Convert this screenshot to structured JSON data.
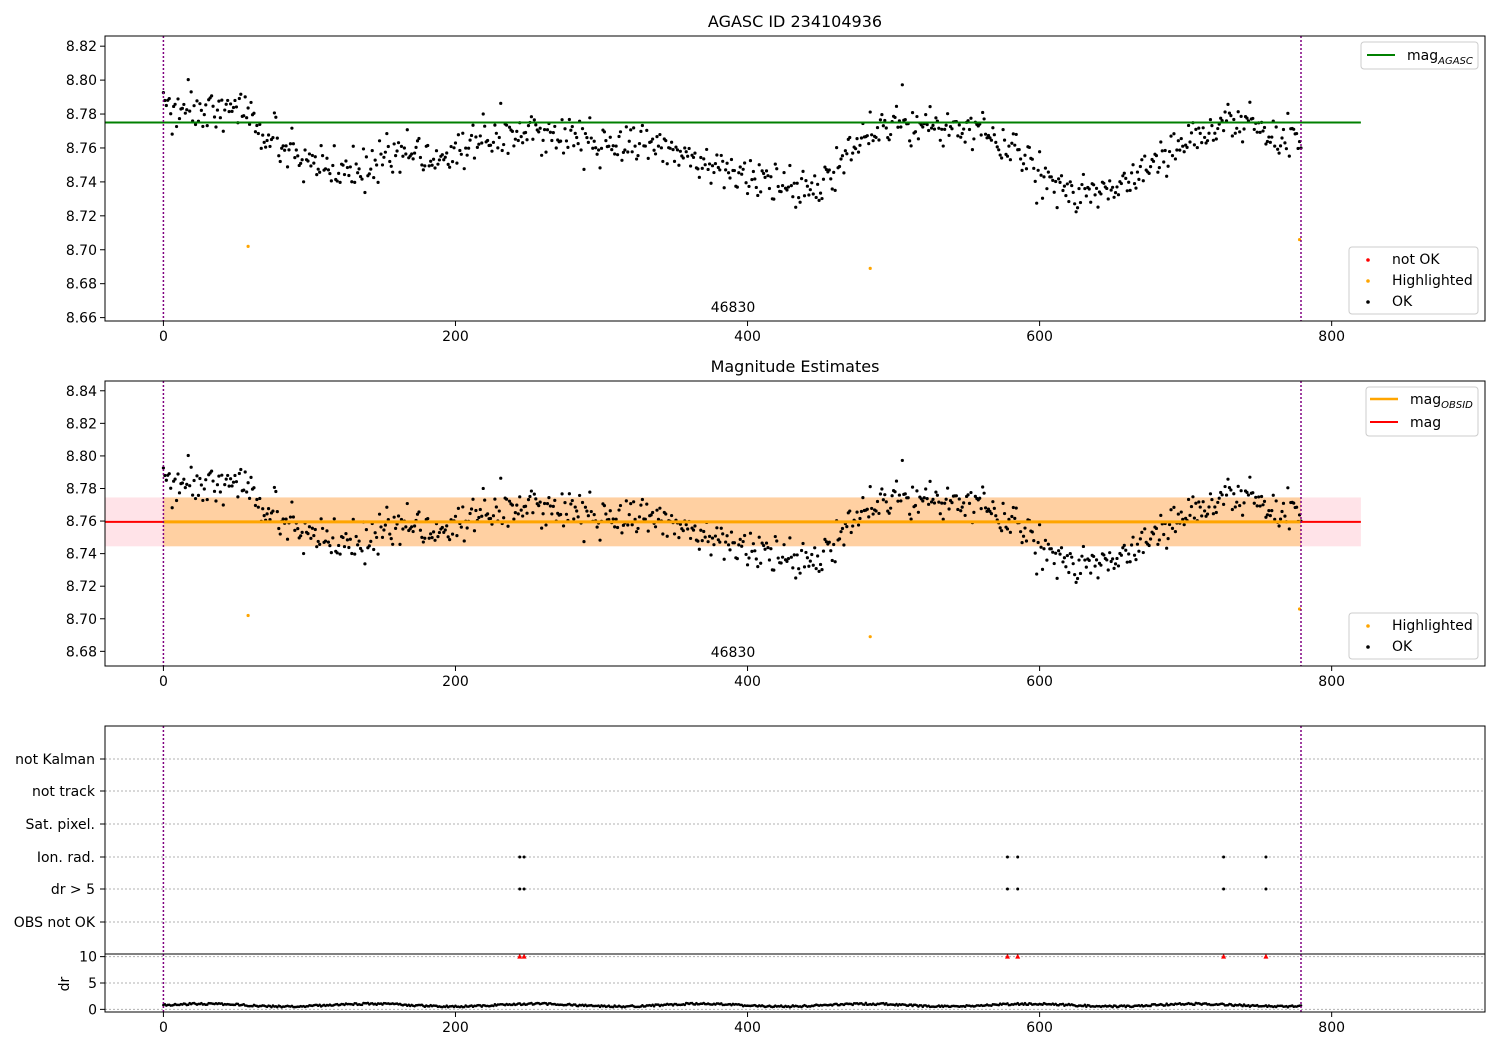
{
  "chart_data": [
    {
      "type": "scatter",
      "title": "AGASC ID 234104936",
      "xlabel": "",
      "ylabel": "",
      "xlim": [
        -40,
        905
      ],
      "ylim": [
        8.658,
        8.826
      ],
      "xticks": [
        0,
        200,
        400,
        600,
        800
      ],
      "yticks": [
        8.66,
        8.68,
        8.7,
        8.72,
        8.74,
        8.76,
        8.78,
        8.8,
        8.82
      ],
      "grid": false,
      "annotation": "46830",
      "reference_lines": [
        {
          "name": "mag_AGASC",
          "y": 8.775,
          "x_range": [
            -40,
            820
          ],
          "color": "#008000"
        }
      ],
      "vlines": [
        0,
        779
      ],
      "highlighted_points": [
        {
          "x": 58,
          "y": 8.702
        },
        {
          "x": 484,
          "y": 8.689
        },
        {
          "x": 778,
          "y": 8.706
        }
      ],
      "not_ok_points": [],
      "ok_trend": [
        [
          0,
          8.785
        ],
        [
          20,
          8.783
        ],
        [
          40,
          8.784
        ],
        [
          55,
          8.782
        ],
        [
          65,
          8.772
        ],
        [
          80,
          8.763
        ],
        [
          100,
          8.752
        ],
        [
          120,
          8.744
        ],
        [
          140,
          8.748
        ],
        [
          160,
          8.758
        ],
        [
          190,
          8.754
        ],
        [
          220,
          8.763
        ],
        [
          250,
          8.77
        ],
        [
          280,
          8.765
        ],
        [
          310,
          8.762
        ],
        [
          340,
          8.76
        ],
        [
          370,
          8.752
        ],
        [
          400,
          8.744
        ],
        [
          430,
          8.738
        ],
        [
          450,
          8.737
        ],
        [
          470,
          8.76
        ],
        [
          500,
          8.775
        ],
        [
          530,
          8.774
        ],
        [
          560,
          8.772
        ],
        [
          580,
          8.758
        ],
        [
          600,
          8.745
        ],
        [
          620,
          8.735
        ],
        [
          640,
          8.735
        ],
        [
          660,
          8.738
        ],
        [
          680,
          8.752
        ],
        [
          700,
          8.765
        ],
        [
          720,
          8.771
        ],
        [
          740,
          8.775
        ],
        [
          760,
          8.765
        ],
        [
          779,
          8.765
        ]
      ],
      "ok_scatter_sd": 0.006,
      "ok_count": 780,
      "legend": {
        "top-right": [
          "mag_AGASC"
        ],
        "bottom-right": [
          "not OK",
          "Highlighted",
          "OK"
        ]
      }
    },
    {
      "type": "scatter",
      "title": "Magnitude Estimates",
      "xlabel": "",
      "ylabel": "",
      "xlim": [
        -40,
        905
      ],
      "ylim": [
        8.671,
        8.846
      ],
      "xticks": [
        0,
        200,
        400,
        600,
        800
      ],
      "yticks": [
        8.68,
        8.7,
        8.72,
        8.74,
        8.76,
        8.78,
        8.8,
        8.82,
        8.84
      ],
      "grid": false,
      "annotation": "46830",
      "reference_lines": [
        {
          "name": "mag_OBSID",
          "y": 8.7595,
          "x_range": [
            0,
            779
          ],
          "color": "#ffa500"
        },
        {
          "name": "mag",
          "y": 8.7595,
          "x_range": [
            -40,
            820
          ],
          "color": "#ff0000"
        }
      ],
      "bands": [
        {
          "y_range": [
            8.7445,
            8.7745
          ],
          "x_range": [
            -40,
            820
          ],
          "color": "#ffc0cb"
        },
        {
          "y_range": [
            8.7445,
            8.7745
          ],
          "x_range": [
            0,
            779
          ],
          "color": "#ffa500"
        }
      ],
      "vlines": [
        0,
        779
      ],
      "highlighted_points": [
        {
          "x": 58,
          "y": 8.702
        },
        {
          "x": 484,
          "y": 8.689
        },
        {
          "x": 778,
          "y": 8.706
        }
      ],
      "ok_same_as_panel": 1,
      "legend": {
        "top-right": [
          "mag_OBSID",
          "mag"
        ],
        "bottom-right": [
          "Highlighted",
          "OK"
        ]
      }
    },
    {
      "type": "scatter",
      "title": "",
      "xlim": [
        -40,
        905
      ],
      "xticks": [
        0,
        200,
        400,
        600,
        800
      ],
      "flag_rows": [
        "not Kalman",
        "not track",
        "Sat. pixel.",
        "Ion. rad.",
        "dr > 5",
        "OBS not OK"
      ],
      "flags": {
        "Ion. rad.": [
          244,
          247,
          578,
          585,
          726,
          755
        ],
        "dr > 5": [
          244,
          247,
          578,
          585,
          726,
          755
        ]
      },
      "grid": true,
      "vlines": [
        0,
        779
      ]
    },
    {
      "type": "scatter",
      "title": "",
      "xlabel": "",
      "ylabel": "dr",
      "xlim": [
        -40,
        905
      ],
      "ylim": [
        -0.5,
        10.5
      ],
      "xticks": [
        0,
        200,
        400,
        600,
        800
      ],
      "yticks": [
        0,
        5,
        10
      ],
      "grid": true,
      "dr_base": 0.8,
      "dr_spread": 0.35,
      "dr_count": 780,
      "dr_outliers_clipped": [
        {
          "x": 244,
          "y": 10
        },
        {
          "x": 247,
          "y": 10
        },
        {
          "x": 578,
          "y": 10
        },
        {
          "x": 585,
          "y": 10
        },
        {
          "x": 726,
          "y": 10
        },
        {
          "x": 755,
          "y": 10
        }
      ],
      "vlines": [
        0,
        779
      ]
    }
  ],
  "text": {
    "title1": "AGASC ID 234104936",
    "title2": "Magnitude Estimates",
    "annot1": "46830",
    "annot2": "46830",
    "leg_mag_agasc": "mag",
    "leg_mag_agasc_sub": "AGASC",
    "leg_mag_obsid": "mag",
    "leg_mag_obsid_sub": "OBSID",
    "leg_mag": "mag",
    "leg_not_ok": "not OK",
    "leg_highlighted": "Highlighted",
    "leg_ok": "OK",
    "flag_not_kalman": "not Kalman",
    "flag_not_track": "not track",
    "flag_sat_pixel": "Sat. pixel.",
    "flag_ion_rad": "Ion. rad.",
    "flag_dr5": "dr > 5",
    "flag_obs_not_ok": "OBS not OK",
    "dr_label": "dr"
  },
  "colors": {
    "ok": "#000000",
    "highlighted": "#ffa500",
    "not_ok": "#ff0000",
    "mag_agasc": "#008000",
    "mag": "#ff0000",
    "mag_obsid": "#ffa500",
    "vline": "#800080",
    "band_pink": "#ffc0cb",
    "band_orange": "#ffa500",
    "grid": "#b0b0b0"
  }
}
